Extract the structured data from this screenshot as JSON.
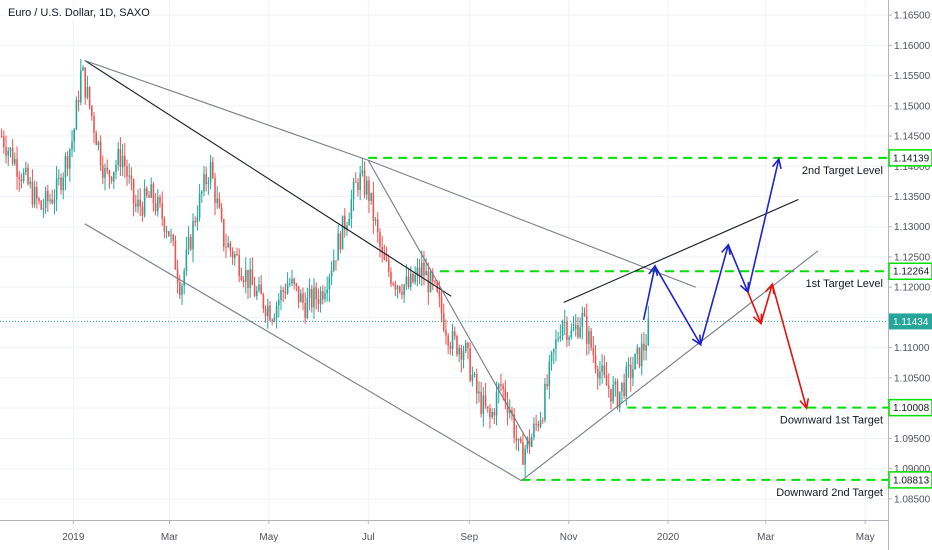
{
  "chart_data": {
    "type": "candlestick",
    "title": "Euro / U.S. Dollar, 1D, SAXO",
    "x_axis": {
      "ticks": [
        "2019",
        "Mar",
        "May",
        "Jul",
        "Sep",
        "Nov",
        "2020",
        "Mar",
        "May"
      ],
      "tick_days": [
        0,
        59,
        120,
        181,
        243,
        304,
        365,
        425,
        486
      ],
      "range_days": [
        -45,
        500
      ]
    },
    "y_axis": {
      "range": [
        1.0815,
        1.1675
      ],
      "ticks": [
        "1.08500",
        "1.09000",
        "1.09500",
        "1.10000",
        "1.10500",
        "1.11000",
        "1.11500",
        "1.12000",
        "1.12500",
        "1.13000",
        "1.13500",
        "1.14000",
        "1.14500",
        "1.15000",
        "1.15500",
        "1.16000",
        "1.16500"
      ]
    },
    "current_price": {
      "label": "1.11434",
      "value": 1.11434,
      "color": "#26a69a"
    },
    "price_path": [
      {
        "day": -44,
        "price": 1.145
      },
      {
        "day": -30,
        "price": 1.138
      },
      {
        "day": -20,
        "price": 1.133
      },
      {
        "day": -10,
        "price": 1.136
      },
      {
        "day": 0,
        "price": 1.145
      },
      {
        "day": 5,
        "price": 1.156
      },
      {
        "day": 10,
        "price": 1.15
      },
      {
        "day": 20,
        "price": 1.138
      },
      {
        "day": 30,
        "price": 1.142
      },
      {
        "day": 38,
        "price": 1.133
      },
      {
        "day": 48,
        "price": 1.135
      },
      {
        "day": 58,
        "price": 1.13
      },
      {
        "day": 66,
        "price": 1.12
      },
      {
        "day": 75,
        "price": 1.132
      },
      {
        "day": 84,
        "price": 1.14
      },
      {
        "day": 92,
        "price": 1.128
      },
      {
        "day": 102,
        "price": 1.124
      },
      {
        "day": 112,
        "price": 1.119
      },
      {
        "day": 122,
        "price": 1.116
      },
      {
        "day": 132,
        "price": 1.121
      },
      {
        "day": 142,
        "price": 1.117
      },
      {
        "day": 152,
        "price": 1.119
      },
      {
        "day": 160,
        "price": 1.125
      },
      {
        "day": 168,
        "price": 1.132
      },
      {
        "day": 175,
        "price": 1.138
      },
      {
        "day": 181,
        "price": 1.136
      },
      {
        "day": 190,
        "price": 1.124
      },
      {
        "day": 198,
        "price": 1.121
      },
      {
        "day": 206,
        "price": 1.12
      },
      {
        "day": 214,
        "price": 1.123
      },
      {
        "day": 222,
        "price": 1.119
      },
      {
        "day": 232,
        "price": 1.111
      },
      {
        "day": 240,
        "price": 1.11
      },
      {
        "day": 248,
        "price": 1.102
      },
      {
        "day": 256,
        "price": 1.098
      },
      {
        "day": 262,
        "price": 1.104
      },
      {
        "day": 268,
        "price": 1.1
      },
      {
        "day": 274,
        "price": 1.092
      },
      {
        "day": 281,
        "price": 1.095
      },
      {
        "day": 288,
        "price": 1.1
      },
      {
        "day": 294,
        "price": 1.108
      },
      {
        "day": 300,
        "price": 1.115
      },
      {
        "day": 306,
        "price": 1.112
      },
      {
        "day": 312,
        "price": 1.115
      },
      {
        "day": 318,
        "price": 1.11
      },
      {
        "day": 326,
        "price": 1.104
      },
      {
        "day": 334,
        "price": 1.102
      },
      {
        "day": 342,
        "price": 1.106
      },
      {
        "day": 350,
        "price": 1.11
      },
      {
        "day": 354,
        "price": 1.114
      }
    ],
    "levels": [
      {
        "name": "2nd Target Level",
        "value": 1.14139,
        "value_label": "1.14139",
        "from_day": 181
      },
      {
        "name": "1st Target Level",
        "value": 1.12264,
        "value_label": "1.12264",
        "from_day": 225
      },
      {
        "name": "Downward 1st Target",
        "value": 1.10008,
        "value_label": "1.10008",
        "from_day": 340
      },
      {
        "name": "Downward 2nd Target",
        "value": 1.08813,
        "value_label": "1.08813",
        "from_day": 275
      }
    ],
    "level_color": "#00e000",
    "trendlines": [
      {
        "points": [
          [
            7,
            1.1575
          ],
          [
            232,
            1.1185
          ]
        ],
        "color": "#131722"
      },
      {
        "points": [
          [
            7,
            1.1575
          ],
          [
            181,
            1.141
          ],
          [
            382,
            1.12
          ]
        ],
        "color": "#787b86"
      },
      {
        "points": [
          [
            7,
            1.1305
          ],
          [
            275,
            1.088
          ]
        ],
        "color": "#787b86"
      },
      {
        "points": [
          [
            181,
            1.141
          ],
          [
            280,
            1.094
          ]
        ],
        "color": "#787b86"
      },
      {
        "points": [
          [
            275,
            1.088
          ],
          [
            457,
            1.126
          ]
        ],
        "color": "#787b86"
      },
      {
        "points": [
          [
            301,
            1.1175
          ],
          [
            445,
            1.1345
          ]
        ],
        "color": "#131722"
      }
    ],
    "projection_up": {
      "color": "#1e22cc",
      "points": [
        [
          350,
          1.1146
        ],
        [
          357,
          1.1235
        ],
        [
          385,
          1.1105
        ],
        [
          402,
          1.127
        ],
        [
          414,
          1.1192
        ],
        [
          433,
          1.1412
        ]
      ]
    },
    "projection_down": {
      "color": "#e8100c",
      "points": [
        [
          414,
          1.1192
        ],
        [
          422,
          1.114
        ],
        [
          429,
          1.1205
        ],
        [
          450,
          1.1
        ]
      ]
    }
  }
}
